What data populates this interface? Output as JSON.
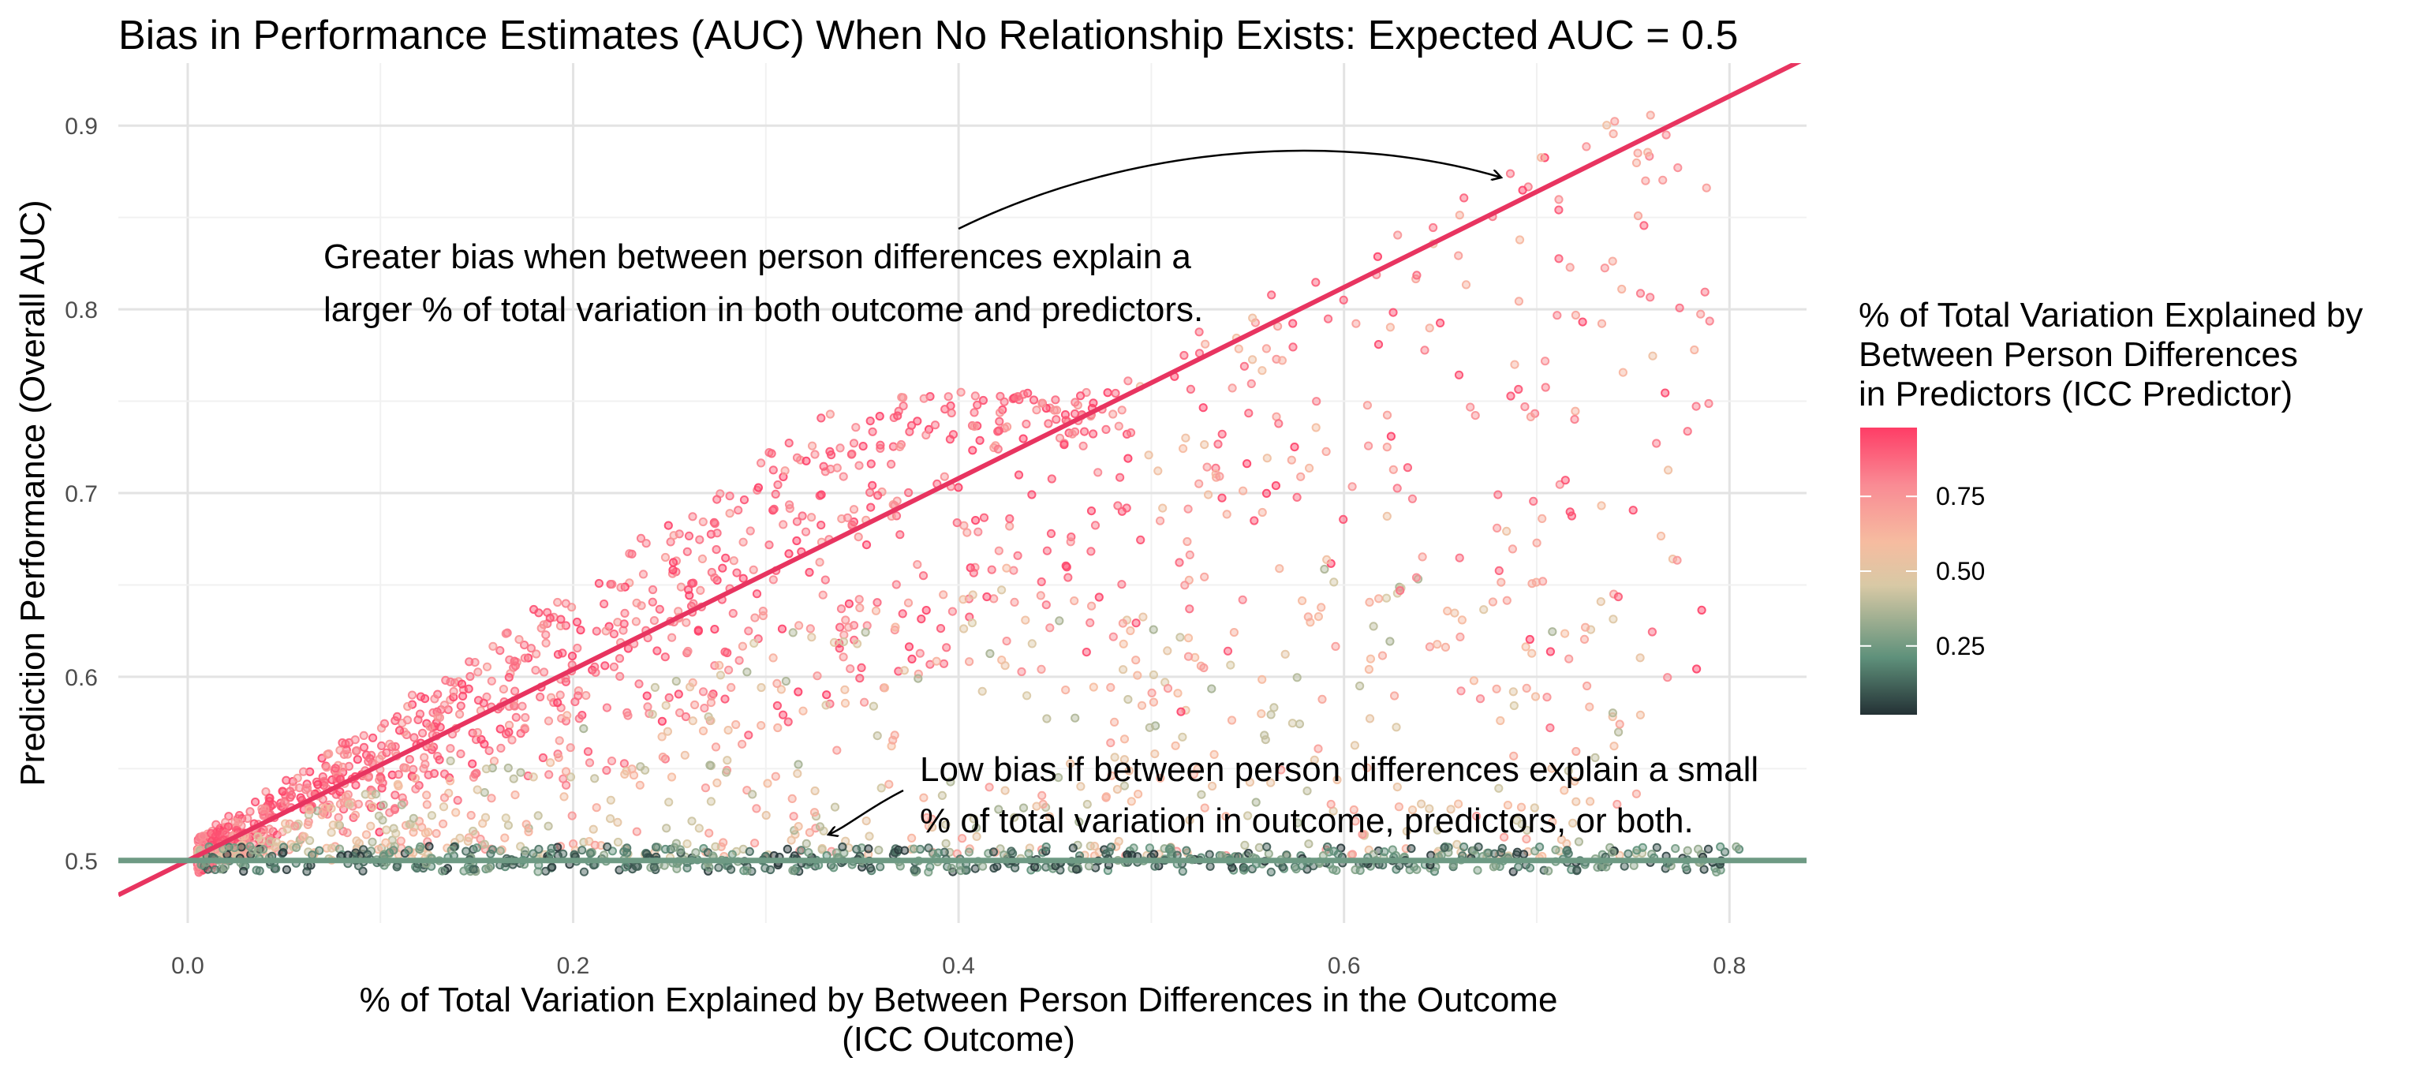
{
  "chart_data": {
    "type": "scatter",
    "title": "Bias in Performance Estimates (AUC) When No Relationship Exists: Expected AUC = 0.5",
    "xlabel_line1": "% of Total Variation Explained by Between Person Differences in the Outcome",
    "xlabel_line2": "(ICC Outcome)",
    "ylabel": "Prediction Performance (Overall AUC)",
    "xlim": [
      -0.036,
      0.84
    ],
    "ylim": [
      0.466,
      0.934
    ],
    "x_ticks": [
      0.0,
      0.2,
      0.4,
      0.6,
      0.8
    ],
    "x_tick_labels": [
      "0.0",
      "0.2",
      "0.4",
      "0.6",
      "0.8"
    ],
    "y_ticks": [
      0.5,
      0.6,
      0.7,
      0.8,
      0.9
    ],
    "y_tick_labels": [
      "0.5",
      "0.6",
      "0.7",
      "0.8",
      "0.9"
    ],
    "grid": true,
    "reference_lines": [
      {
        "kind": "diagonal",
        "intercept": 0.5,
        "slope": 0.52,
        "color": "#e83460"
      },
      {
        "kind": "horizontal",
        "y": 0.5,
        "color": "#6e9a84"
      }
    ],
    "color_scale": {
      "title_line1": "% of Total Variation Explained by",
      "title_line2": "Between Person Differences",
      "title_line3": "in Predictors (ICC Predictor)",
      "breaks": [
        0.25,
        0.5,
        0.75
      ],
      "break_labels": [
        "0.25",
        "0.50",
        "0.75"
      ],
      "range": [
        0.02,
        0.98
      ],
      "colors": [
        "#243135",
        "#5f917b",
        "#d8c9a5",
        "#f6bca0",
        "#f98b94",
        "#fe3d66"
      ],
      "legend_position": "right"
    },
    "annotations": [
      {
        "line1": "Greater bias when between person differences explain a",
        "line2": "larger % of total variation in both outcome and predictors.",
        "arrow_to": [
          0.685,
          0.869
        ]
      },
      {
        "line1": "Low bias if between person differences explain a small",
        "line2": "% of total variation in outcome, predictors, or both.",
        "arrow_to": [
          0.33,
          0.508
        ]
      }
    ],
    "point_count": 2400,
    "point_clusters": [
      {
        "desc": "steep band",
        "x_range": [
          0.0,
          0.48
        ],
        "y_range": [
          0.5,
          0.75
        ],
        "icc_predictor": "high"
      },
      {
        "desc": "mid spread",
        "x_range": [
          0.0,
          0.75
        ],
        "y_range": [
          0.5,
          0.6
        ],
        "icc_predictor": "medium"
      },
      {
        "desc": "flat baseline",
        "x_range": [
          0.0,
          0.8
        ],
        "y_range": [
          0.485,
          0.512
        ],
        "icc_predictor": "low"
      },
      {
        "desc": "sparse high x",
        "x_range": [
          0.5,
          0.8
        ],
        "y_range": [
          0.55,
          0.91
        ],
        "icc_predictor": "high"
      }
    ]
  }
}
